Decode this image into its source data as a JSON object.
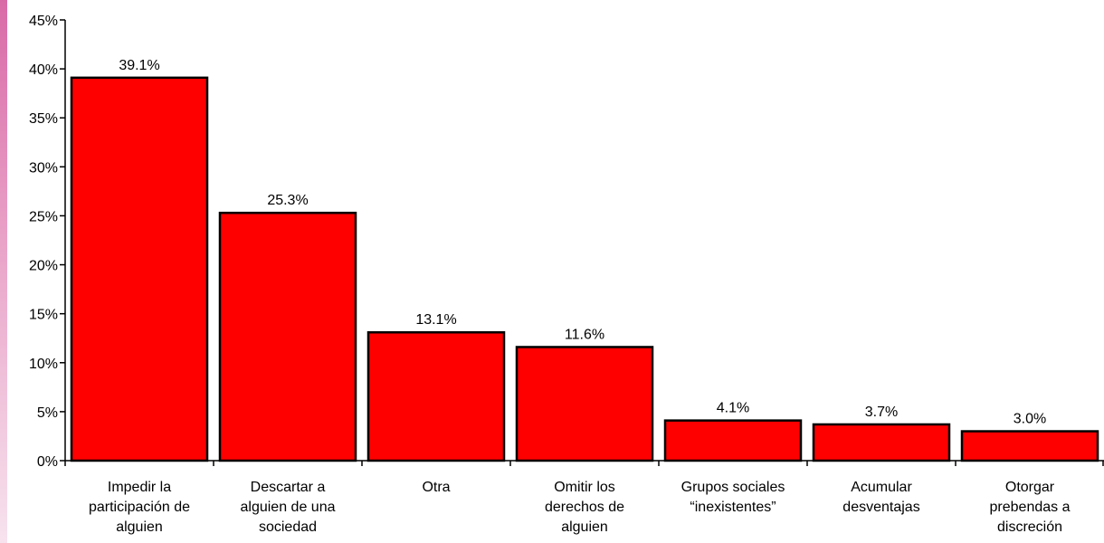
{
  "chart_data": {
    "type": "bar",
    "title": "",
    "xlabel": "",
    "ylabel": "",
    "ylim": [
      0,
      45
    ],
    "yticks": [
      0,
      5,
      10,
      15,
      20,
      25,
      30,
      35,
      40,
      45
    ],
    "ytick_labels": [
      "0%",
      "5%",
      "10%",
      "15%",
      "20%",
      "25%",
      "30%",
      "35%",
      "40%",
      "45%"
    ],
    "grid": false,
    "legend": "none",
    "bar_color": "#ff0000",
    "bar_edge_color": "#000000",
    "categories": [
      [
        "Impedir la",
        "participación de",
        "alguien"
      ],
      [
        "Descartar a",
        "alguien de una",
        "sociedad"
      ],
      [
        "Otra"
      ],
      [
        "Omitir los",
        "derechos de",
        "alguien"
      ],
      [
        "Grupos sociales",
        "“inexistentes”"
      ],
      [
        "Acumular",
        "desventajas"
      ],
      [
        "Otorgar",
        "prebendas a",
        "discreción"
      ]
    ],
    "values": [
      39.1,
      25.3,
      13.1,
      11.6,
      4.1,
      3.7,
      3.0
    ],
    "value_labels": [
      "39.1%",
      "25.3%",
      "13.1%",
      "11.6%",
      "4.1%",
      "3.7%",
      "3.0%"
    ]
  }
}
